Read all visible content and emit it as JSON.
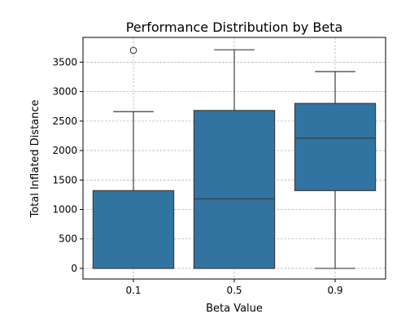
{
  "chart_data": {
    "type": "box",
    "title": "Performance Distribution by Beta",
    "xlabel": "Beta Value",
    "ylabel": "Total Inflated Distance",
    "categories": [
      "0.1",
      "0.5",
      "0.9"
    ],
    "boxes": [
      {
        "category": "0.1",
        "whisker_low": 0,
        "q1": 0,
        "median": 0,
        "q3": 1320,
        "whisker_high": 2660,
        "outliers": [
          3700
        ]
      },
      {
        "category": "0.5",
        "whisker_low": 0,
        "q1": 0,
        "median": 1180,
        "q3": 2680,
        "whisker_high": 3710,
        "outliers": []
      },
      {
        "category": "0.9",
        "whisker_low": 0,
        "q1": 1320,
        "median": 2210,
        "q3": 2800,
        "whisker_high": 3340,
        "outliers": []
      }
    ],
    "ylim": [
      -180,
      3920
    ],
    "yticks": [
      0,
      500,
      1000,
      1500,
      2000,
      2500,
      3000,
      3500
    ],
    "grid": true,
    "box_color": "#3274a1",
    "line_color": "#3d3d3d"
  }
}
